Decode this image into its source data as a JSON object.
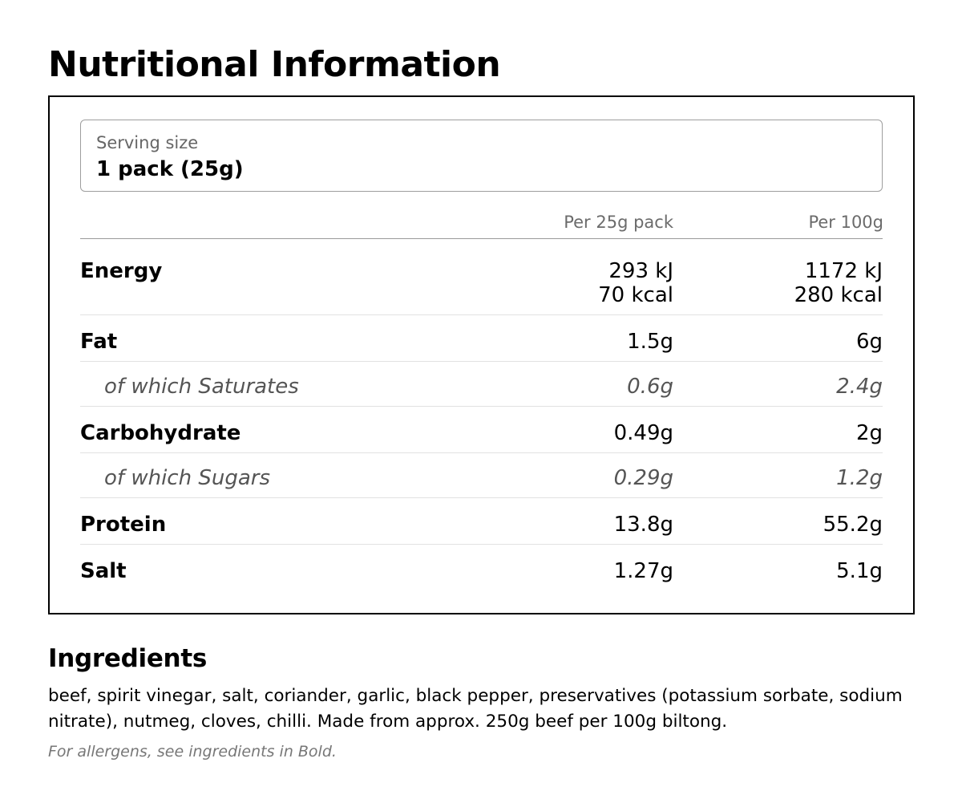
{
  "title": "Nutritional Information",
  "serving": {
    "label": "Serving size",
    "value": "1 pack (25g)"
  },
  "columns": {
    "per_pack": "Per 25g pack",
    "per_100g": "Per 100g"
  },
  "rows": [
    {
      "name": "Energy",
      "per_pack": [
        "293 kJ",
        "70 kcal"
      ],
      "per_100g": [
        "1172 kJ",
        "280 kcal"
      ],
      "sub": false
    },
    {
      "name": "Fat",
      "per_pack": "1.5g",
      "per_100g": "6g",
      "sub": false
    },
    {
      "name": "of which Saturates",
      "per_pack": "0.6g",
      "per_100g": "2.4g",
      "sub": true
    },
    {
      "name": "Carbohydrate",
      "per_pack": "0.49g",
      "per_100g": "2g",
      "sub": false
    },
    {
      "name": "of which Sugars",
      "per_pack": "0.29g",
      "per_100g": "1.2g",
      "sub": true
    },
    {
      "name": "Protein",
      "per_pack": "13.8g",
      "per_100g": "55.2g",
      "sub": false
    },
    {
      "name": "Salt",
      "per_pack": "1.27g",
      "per_100g": "5.1g",
      "sub": false
    }
  ],
  "ingredients": {
    "title": "Ingredients",
    "text": "beef, spirit vinegar, salt, coriander, garlic, black pepper, preservatives (potassium sorbate, sodium nitrate), nutmeg, cloves, chilli. Made from approx. 250g beef per 100g biltong.",
    "note": "For allergens, see ingredients in Bold."
  }
}
